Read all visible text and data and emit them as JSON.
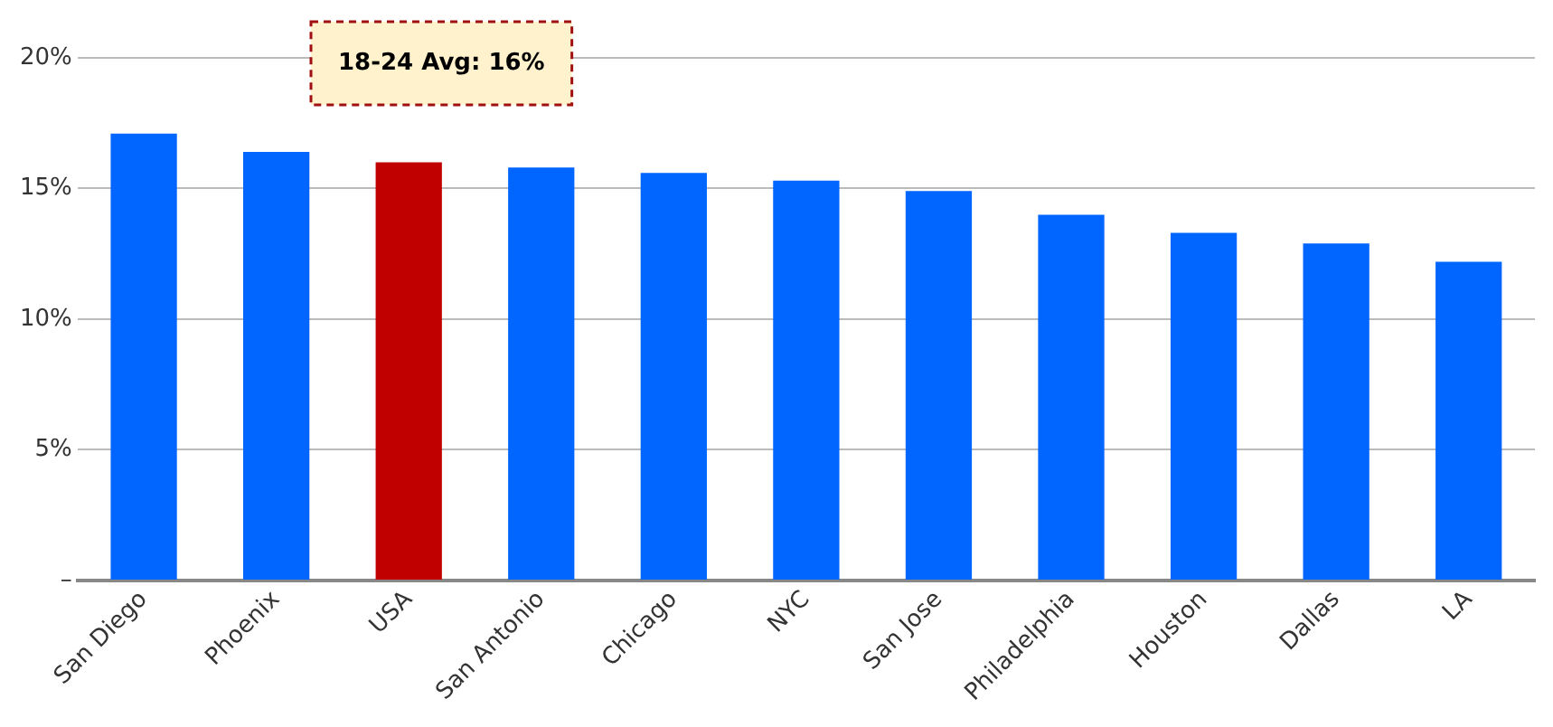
{
  "chart_data": {
    "type": "bar",
    "categories": [
      "San Diego",
      "Phoenix",
      "USA",
      "San Antonio",
      "Chicago",
      "NYC",
      "San Jose",
      "Philadelphia",
      "Houston",
      "Dallas",
      "LA"
    ],
    "values": [
      17.1,
      16.4,
      16.0,
      15.8,
      15.6,
      15.3,
      14.9,
      14.0,
      13.3,
      12.9,
      12.2
    ],
    "colors": [
      "#0066ff",
      "#0066ff",
      "#c00000",
      "#0066ff",
      "#0066ff",
      "#0066ff",
      "#0066ff",
      "#0066ff",
      "#0066ff",
      "#0066ff",
      "#0066ff"
    ],
    "ylim": [
      0,
      20
    ],
    "yticks": [
      {
        "value": 0,
        "label": "–"
      },
      {
        "value": 5,
        "label": "5%"
      },
      {
        "value": 10,
        "label": "10%"
      },
      {
        "value": 15,
        "label": "15%"
      },
      {
        "value": 20,
        "label": "20%"
      }
    ],
    "grid": "y",
    "annotations": [
      "18-24 Avg: 16%"
    ]
  }
}
